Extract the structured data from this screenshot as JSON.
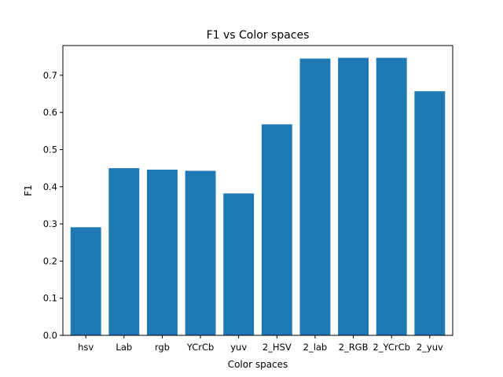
{
  "chart_data": {
    "type": "bar",
    "title": "F1 vs Color spaces",
    "xlabel": "Color spaces",
    "ylabel": "F1",
    "categories": [
      "hsv",
      "Lab",
      "rgb",
      "YCrCb",
      "yuv",
      "2_HSV",
      "2_lab",
      "2_RGB",
      "2_YCrCb",
      "2_yuv"
    ],
    "values": [
      0.291,
      0.45,
      0.446,
      0.443,
      0.382,
      0.568,
      0.745,
      0.747,
      0.747,
      0.657
    ],
    "ylim": [
      0,
      0.78
    ],
    "yticks": [
      0.0,
      0.1,
      0.2,
      0.3,
      0.4,
      0.5,
      0.6,
      0.7
    ],
    "ytick_labels": [
      "0.0",
      "0.1",
      "0.2",
      "0.3",
      "0.4",
      "0.5",
      "0.6",
      "0.7"
    ],
    "bar_color": "#1f77b4",
    "grid": false,
    "legend": "none"
  }
}
